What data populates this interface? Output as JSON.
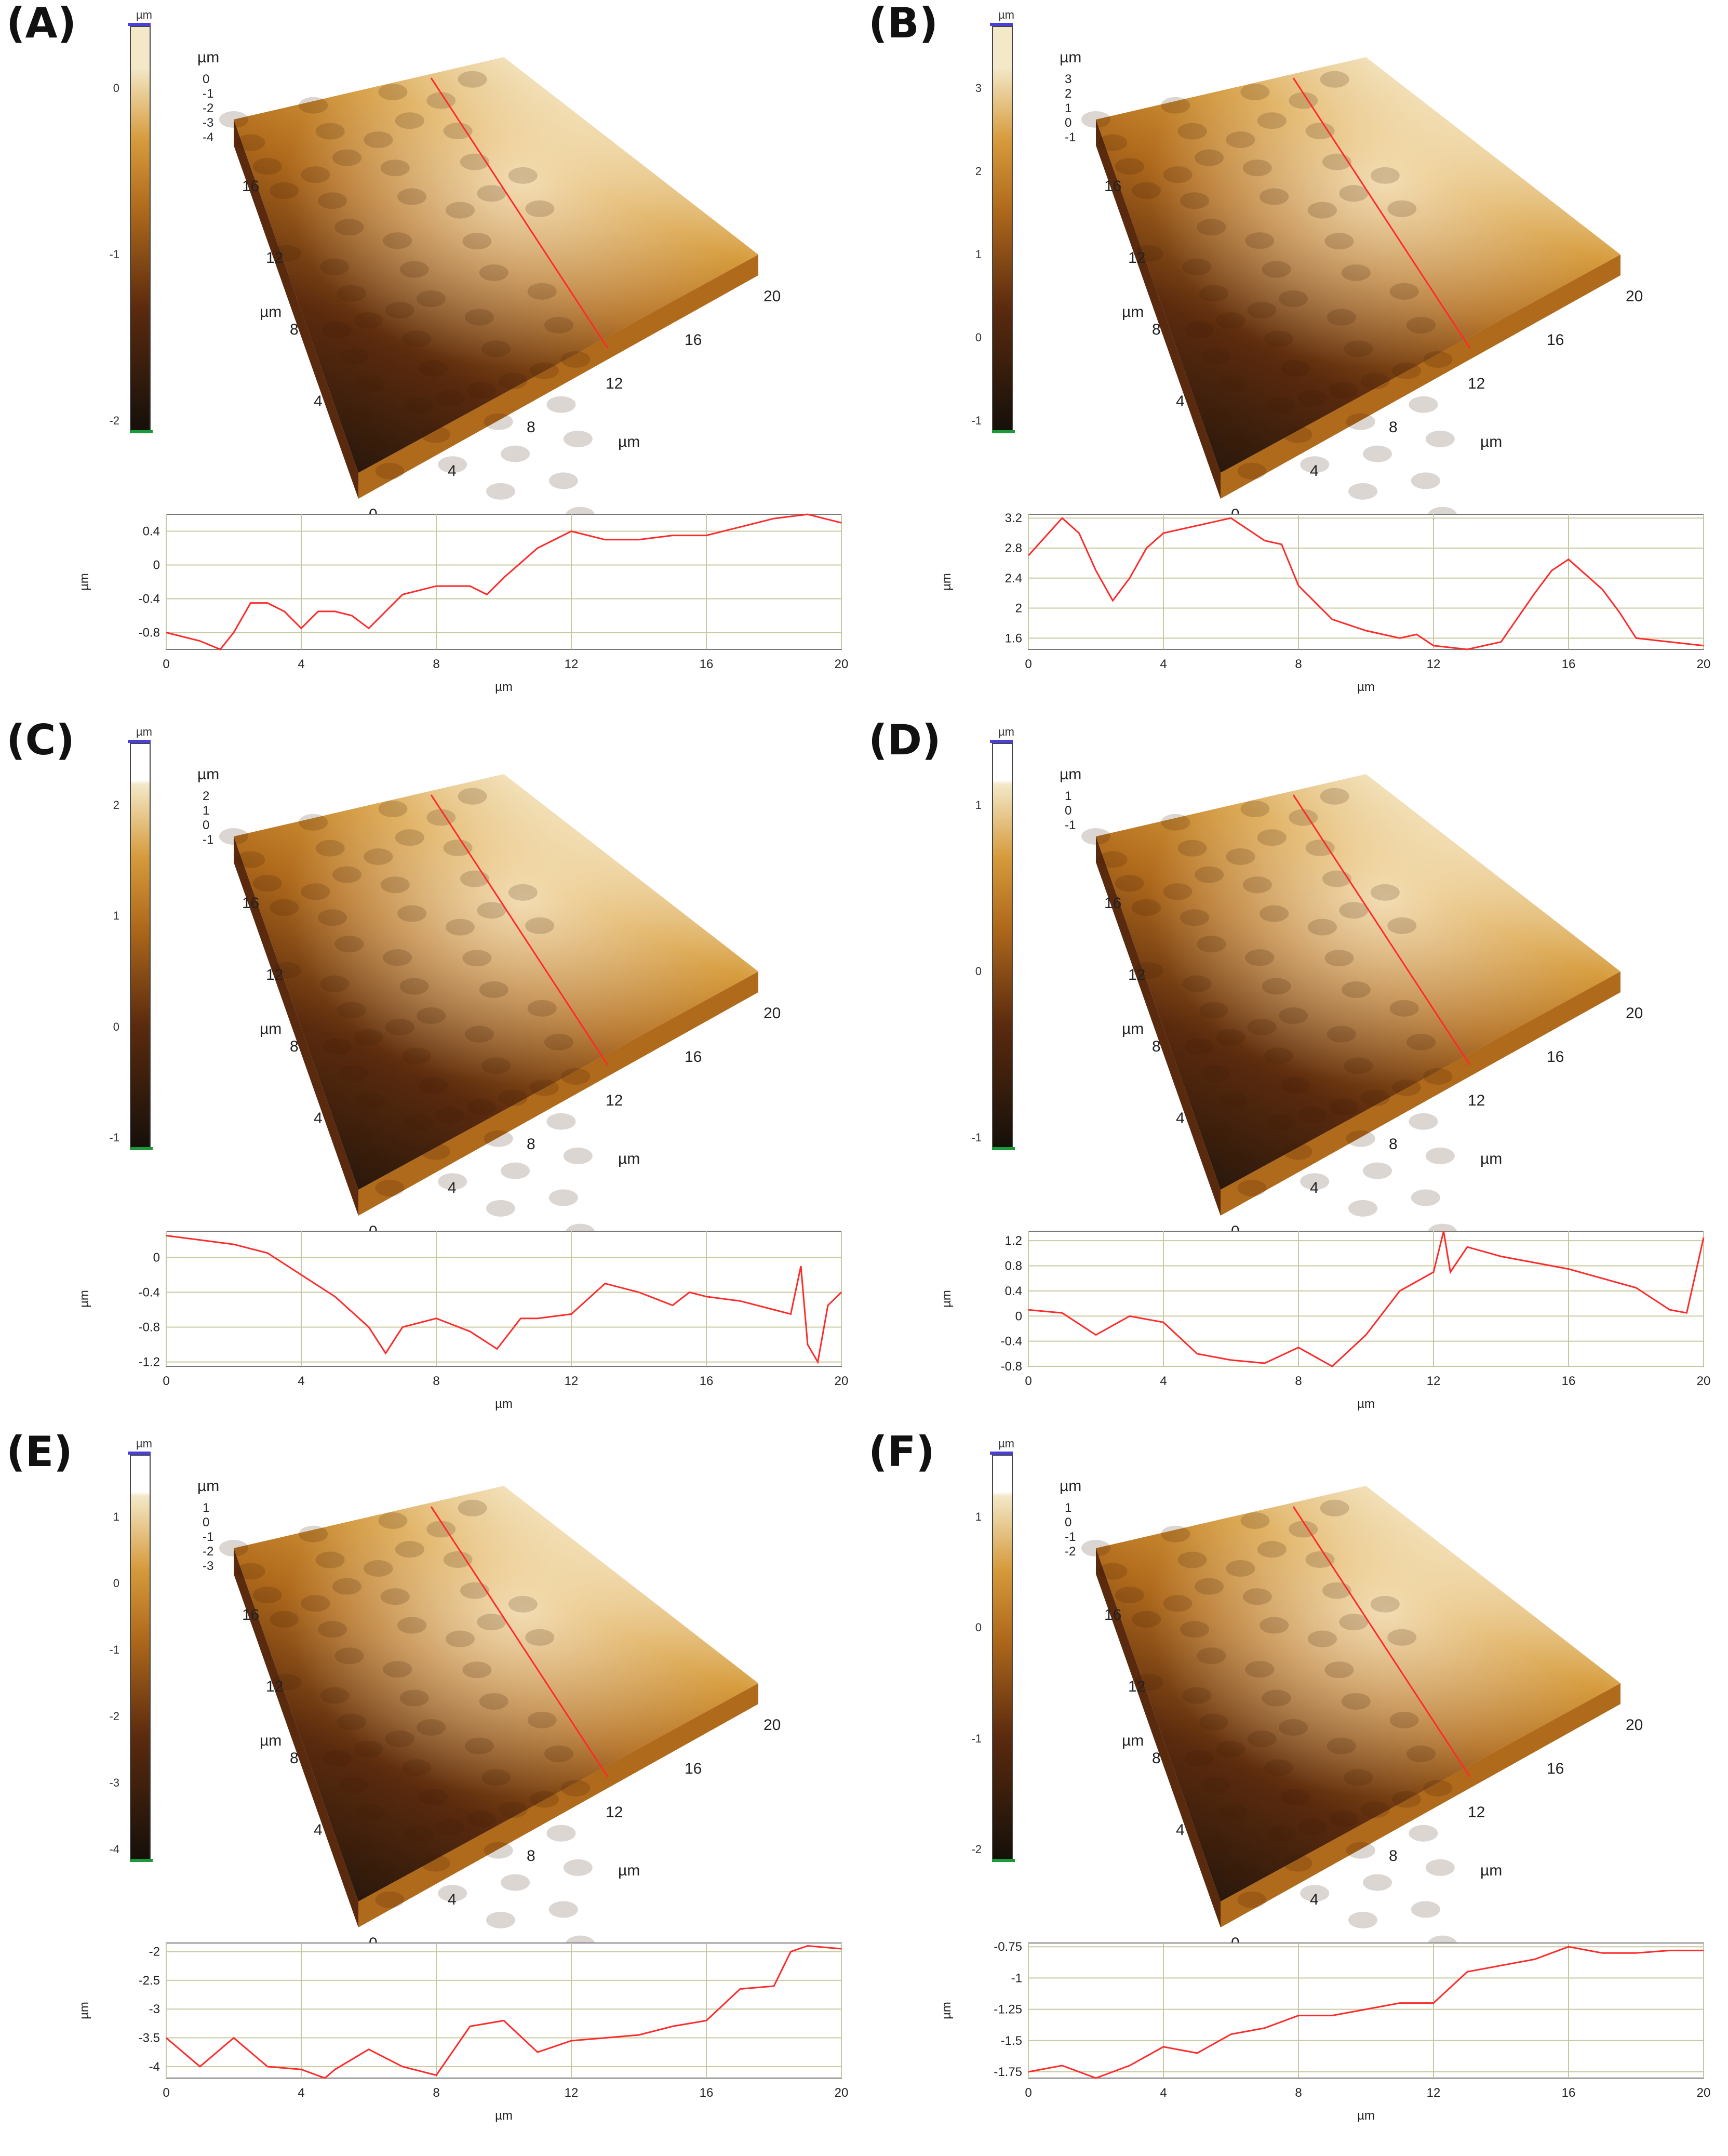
{
  "panels": [
    {
      "label": "(A)",
      "colorbar": {
        "unit": "µm",
        "ticks": [
          "0",
          "-1",
          "-2"
        ],
        "stops": [
          "#15100a",
          "#5a2a0e",
          "#b06a1c",
          "#d69b3c",
          "#f3e8c8"
        ],
        "hasWhite": false
      },
      "surface": {
        "z_unit": "µm",
        "z_ticks": [
          "0",
          "-1",
          "-2",
          "-3",
          "-4"
        ],
        "axis_ticks": [
          "0",
          "4",
          "8",
          "12",
          "16",
          "20"
        ],
        "x_unit": "µm",
        "y_unit": "µm"
      },
      "profile": {
        "y_unit": "µm",
        "x_unit": "µm",
        "x_ticks": [
          "0",
          "4",
          "8",
          "12",
          "16",
          "20"
        ],
        "y_ticks": [
          "0.4",
          "0",
          "-0.4",
          "-0.8"
        ],
        "ylim": [
          -1,
          0.6
        ],
        "x": [
          0,
          1,
          1.6,
          2,
          2.5,
          3,
          3.5,
          4,
          4.5,
          5,
          5.5,
          6,
          7,
          8,
          9,
          9.5,
          10,
          11,
          12,
          13,
          14,
          15,
          16,
          17,
          18,
          19,
          20
        ],
        "y": [
          -0.8,
          -0.9,
          -1,
          -0.8,
          -0.45,
          -0.45,
          -0.55,
          -0.75,
          -0.55,
          -0.55,
          -0.6,
          -0.75,
          -0.35,
          -0.25,
          -0.25,
          -0.35,
          -0.15,
          0.2,
          0.4,
          0.3,
          0.3,
          0.35,
          0.35,
          0.45,
          0.55,
          0.6,
          0.5
        ]
      }
    },
    {
      "label": "(B)",
      "colorbar": {
        "unit": "µm",
        "ticks": [
          "3",
          "2",
          "1",
          "0",
          "-1"
        ],
        "stops": [
          "#15100a",
          "#5a2a0e",
          "#b06a1c",
          "#d69b3c",
          "#f3e8c8"
        ],
        "hasWhite": false
      },
      "surface": {
        "z_unit": "µm",
        "z_ticks": [
          "3",
          "2",
          "1",
          "0",
          "-1"
        ],
        "axis_ticks": [
          "0",
          "4",
          "8",
          "12",
          "16",
          "20"
        ],
        "x_unit": "µm",
        "y_unit": "µm"
      },
      "profile": {
        "y_unit": "µm",
        "x_unit": "µm",
        "x_ticks": [
          "0",
          "4",
          "8",
          "12",
          "16",
          "20"
        ],
        "y_ticks": [
          "3.2",
          "2.8",
          "2.4",
          "2",
          "1.6"
        ],
        "ylim": [
          1.45,
          3.25
        ],
        "x": [
          0,
          0.5,
          1,
          1.5,
          2,
          2.5,
          3,
          3.5,
          4,
          5,
          6,
          7,
          7.5,
          8,
          9,
          10,
          11,
          11.5,
          12,
          13,
          14,
          15,
          15.5,
          16,
          17,
          17.5,
          18,
          19,
          20
        ],
        "y": [
          2.7,
          2.95,
          3.2,
          3.0,
          2.5,
          2.1,
          2.4,
          2.8,
          3.0,
          3.1,
          3.2,
          2.9,
          2.85,
          2.3,
          1.85,
          1.7,
          1.6,
          1.65,
          1.5,
          1.45,
          1.55,
          2.2,
          2.5,
          2.65,
          2.25,
          1.95,
          1.6,
          1.55,
          1.5
        ]
      }
    },
    {
      "label": "(C)",
      "colorbar": {
        "unit": "µm",
        "ticks": [
          "2",
          "1",
          "0",
          "-1"
        ],
        "stops": [
          "#15100a",
          "#5a2a0e",
          "#b06a1c",
          "#d69b3c",
          "#f3e8c8"
        ],
        "hasWhite": true
      },
      "surface": {
        "z_unit": "µm",
        "z_ticks": [
          "2",
          "1",
          "0",
          "-1"
        ],
        "axis_ticks": [
          "0",
          "4",
          "8",
          "12",
          "16",
          "20"
        ],
        "x_unit": "µm",
        "y_unit": "µm"
      },
      "profile": {
        "y_unit": "µm",
        "x_unit": "µm",
        "x_ticks": [
          "0",
          "4",
          "8",
          "12",
          "16",
          "20"
        ],
        "y_ticks": [
          "0",
          "-0.4",
          "-0.8",
          "-1.2"
        ],
        "ylim": [
          -1.25,
          0.3
        ],
        "x": [
          0,
          1,
          2,
          3,
          4,
          5,
          6,
          6.5,
          7,
          8,
          9,
          9.8,
          10.5,
          11,
          12,
          13,
          14,
          15,
          15.5,
          16,
          17,
          18,
          18.5,
          18.8,
          19,
          19.3,
          19.6,
          20
        ],
        "y": [
          0.25,
          0.2,
          0.15,
          0.05,
          -0.2,
          -0.45,
          -0.8,
          -1.1,
          -0.8,
          -0.7,
          -0.85,
          -1.05,
          -0.7,
          -0.7,
          -0.65,
          -0.3,
          -0.4,
          -0.55,
          -0.4,
          -0.45,
          -0.5,
          -0.6,
          -0.65,
          -0.1,
          -1,
          -1.2,
          -0.55,
          -0.4
        ]
      }
    },
    {
      "label": "(D)",
      "colorbar": {
        "unit": "µm",
        "ticks": [
          "1",
          "0",
          "-1"
        ],
        "stops": [
          "#15100a",
          "#5a2a0e",
          "#b06a1c",
          "#d69b3c",
          "#f3e8c8"
        ],
        "hasWhite": true
      },
      "surface": {
        "z_unit": "µm",
        "z_ticks": [
          "1",
          "0",
          "-1"
        ],
        "axis_ticks": [
          "0",
          "4",
          "8",
          "12",
          "16",
          "20"
        ],
        "x_unit": "µm",
        "y_unit": "µm"
      },
      "profile": {
        "y_unit": "µm",
        "x_unit": "µm",
        "x_ticks": [
          "0",
          "4",
          "8",
          "12",
          "16",
          "20"
        ],
        "y_ticks": [
          "1.2",
          "0.8",
          "0.4",
          "0",
          "-0.4",
          "-0.8"
        ],
        "ylim": [
          -0.8,
          1.35
        ],
        "x": [
          0,
          1,
          2,
          3,
          4,
          5,
          6,
          7,
          8,
          9,
          10,
          11,
          12,
          12.3,
          12.5,
          13,
          14,
          15,
          16,
          17,
          18,
          19,
          19.5,
          20
        ],
        "y": [
          0.1,
          0.05,
          -0.3,
          0,
          -0.1,
          -0.6,
          -0.7,
          -0.75,
          -0.5,
          -0.8,
          -0.3,
          0.4,
          0.7,
          1.35,
          0.7,
          1.1,
          0.95,
          0.85,
          0.75,
          0.6,
          0.45,
          0.1,
          0.05,
          1.25
        ]
      }
    },
    {
      "label": "(E)",
      "colorbar": {
        "unit": "µm",
        "ticks": [
          "1",
          "0",
          "-1",
          "-2",
          "-3",
          "-4"
        ],
        "stops": [
          "#15100a",
          "#5a2a0e",
          "#b06a1c",
          "#d69b3c",
          "#f3e8c8"
        ],
        "hasWhite": true
      },
      "surface": {
        "z_unit": "µm",
        "z_ticks": [
          "1",
          "0",
          "-1",
          "-2",
          "-3"
        ],
        "axis_ticks": [
          "0",
          "4",
          "8",
          "12",
          "16",
          "20"
        ],
        "x_unit": "µm",
        "y_unit": "µm"
      },
      "profile": {
        "y_unit": "µm",
        "x_unit": "µm",
        "x_ticks": [
          "0",
          "4",
          "8",
          "12",
          "16",
          "20"
        ],
        "y_ticks": [
          "-2",
          "-2.5",
          "-3",
          "-3.5",
          "-4"
        ],
        "ylim": [
          -4.2,
          -1.85
        ],
        "x": [
          0,
          1,
          2,
          3,
          4,
          4.7,
          5,
          6,
          7,
          8,
          9,
          10,
          11,
          12,
          13,
          14,
          15,
          16,
          17,
          18,
          18.5,
          19,
          20
        ],
        "y": [
          -3.5,
          -4,
          -3.5,
          -4,
          -4.05,
          -4.2,
          -4.05,
          -3.7,
          -4,
          -4.15,
          -3.3,
          -3.2,
          -3.75,
          -3.55,
          -3.5,
          -3.45,
          -3.3,
          -3.2,
          -2.65,
          -2.6,
          -2,
          -1.9,
          -1.95
        ]
      }
    },
    {
      "label": "(F)",
      "colorbar": {
        "unit": "µm",
        "ticks": [
          "1",
          "0",
          "-1",
          "-2"
        ],
        "stops": [
          "#15100a",
          "#5a2a0e",
          "#b06a1c",
          "#d69b3c",
          "#f3e8c8"
        ],
        "hasWhite": true
      },
      "surface": {
        "z_unit": "µm",
        "z_ticks": [
          "1",
          "0",
          "-1",
          "-2"
        ],
        "axis_ticks": [
          "0",
          "4",
          "8",
          "12",
          "16",
          "20"
        ],
        "x_unit": "µm",
        "y_unit": "µm"
      },
      "profile": {
        "y_unit": "µm",
        "x_unit": "µm",
        "x_ticks": [
          "0",
          "4",
          "8",
          "12",
          "16",
          "20"
        ],
        "y_ticks": [
          "-0.75",
          "-1",
          "-1.25",
          "-1.5",
          "-1.75"
        ],
        "ylim": [
          -1.8,
          -0.72
        ],
        "x": [
          0,
          1,
          2,
          3,
          4,
          5,
          6,
          7,
          8,
          9,
          10,
          11,
          12,
          13,
          14,
          15,
          16,
          17,
          18,
          19,
          20
        ],
        "y": [
          -1.75,
          -1.7,
          -1.8,
          -1.7,
          -1.55,
          -1.6,
          -1.45,
          -1.4,
          -1.3,
          -1.3,
          -1.25,
          -1.2,
          -1.2,
          -0.95,
          -0.9,
          -0.85,
          -0.75,
          -0.8,
          -0.8,
          -0.78,
          -0.78
        ]
      }
    }
  ]
}
